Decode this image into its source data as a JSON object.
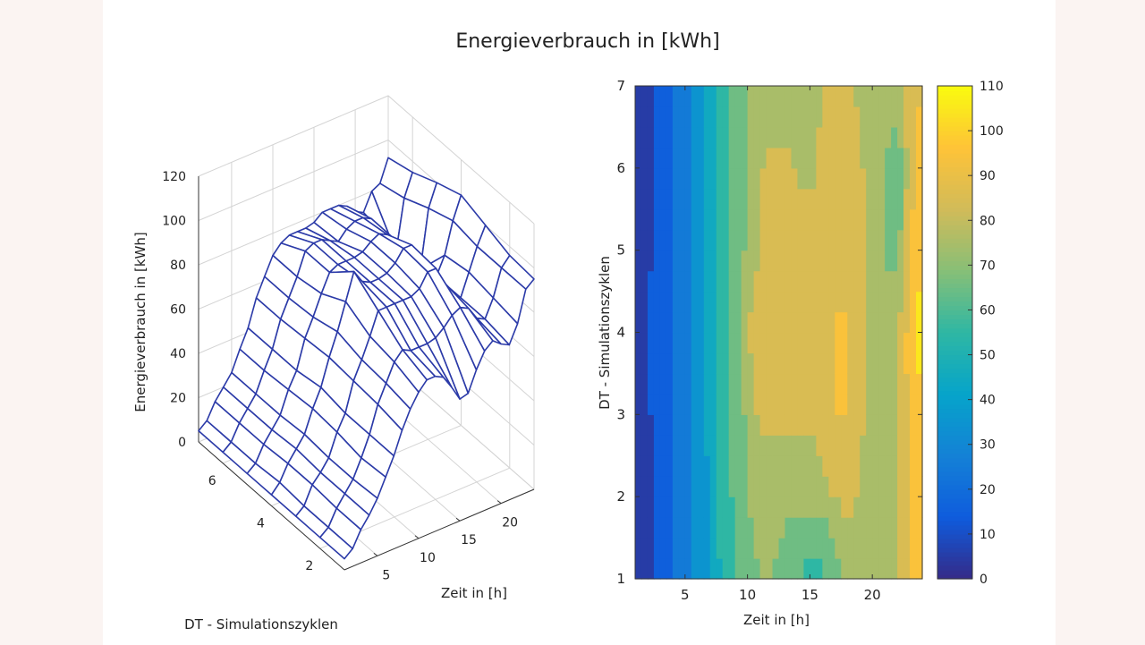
{
  "chart_data": [
    {
      "type": "surface-mesh",
      "title": "Energieverbrauch in [kWh]",
      "xlabel": "Zeit in [h]",
      "ylabel": "DT - Simulationszyklen",
      "zlabel": "Energieverbrauch in [kWh]",
      "xlim": [
        1,
        24
      ],
      "ylim": [
        1,
        7
      ],
      "zlim": [
        0,
        120
      ],
      "xticks": [
        5,
        10,
        15,
        20
      ],
      "yticks": [
        2,
        4,
        6
      ],
      "zticks": [
        0,
        20,
        40,
        60,
        80,
        100,
        120
      ],
      "grid": true,
      "mesh_color": "#2b3aa8"
    },
    {
      "type": "contourf",
      "xlabel": "Zeit in [h]",
      "ylabel": "DT - Simulationszyklen",
      "xlim": [
        1,
        24
      ],
      "ylim": [
        1,
        7
      ],
      "xticks": [
        5,
        10,
        15,
        20
      ],
      "yticks": [
        1,
        2,
        3,
        4,
        5,
        6,
        7
      ],
      "colorbar": {
        "range": [
          0,
          110
        ],
        "ticks": [
          0,
          10,
          20,
          30,
          40,
          50,
          60,
          70,
          80,
          90,
          100,
          110
        ],
        "placement": "right"
      },
      "levels_step": 10
    }
  ],
  "data": {
    "hours": [
      1,
      2,
      3,
      4,
      5,
      6,
      7,
      8,
      9,
      10,
      11,
      12,
      13,
      14,
      15,
      16,
      17,
      18,
      19,
      20,
      21,
      22,
      23,
      24
    ],
    "cycles": [
      1,
      2,
      3,
      4,
      5,
      6,
      7
    ],
    "z": [
      [
        5,
        8,
        15,
        20,
        26,
        34,
        42,
        52,
        60,
        66,
        70,
        70,
        68,
        62,
        55,
        56,
        65,
        72,
        75,
        72,
        70,
        78,
        92,
        95
      ],
      [
        5,
        8,
        15,
        20,
        25,
        33,
        42,
        54,
        62,
        70,
        74,
        72,
        72,
        72,
        73,
        76,
        80,
        82,
        80,
        74,
        72,
        80,
        92,
        96
      ],
      [
        5,
        8,
        16,
        20,
        25,
        35,
        42,
        55,
        63,
        72,
        82,
        82,
        82,
        82,
        82,
        84,
        90,
        90,
        82,
        76,
        72,
        82,
        92,
        100
      ],
      [
        5,
        9,
        16,
        21,
        26,
        36,
        44,
        56,
        66,
        78,
        90,
        84,
        82,
        82,
        83,
        86,
        91,
        91,
        83,
        76,
        72,
        80,
        94,
        104
      ],
      [
        5,
        8,
        15,
        20,
        25,
        35,
        42,
        55,
        63,
        72,
        80,
        82,
        82,
        82,
        83,
        86,
        88,
        86,
        82,
        75,
        70,
        64,
        90,
        100
      ],
      [
        5,
        8,
        15,
        20,
        25,
        34,
        42,
        54,
        62,
        70,
        80,
        82,
        82,
        80,
        78,
        82,
        84,
        84,
        82,
        74,
        70,
        62,
        85,
        95
      ],
      [
        5,
        8,
        15,
        20,
        25,
        34,
        42,
        54,
        62,
        70,
        74,
        76,
        76,
        76,
        77,
        80,
        80,
        80,
        78,
        74,
        72,
        80,
        82,
        92
      ]
    ]
  },
  "colors": {
    "colormap": [
      "#352A87",
      "#0F5CDD",
      "#1481D6",
      "#06A4CA",
      "#2EB7A4",
      "#87BF77",
      "#D1BB59",
      "#FEC338",
      "#F9FB0E"
    ],
    "contour_line": "#1a1a1a"
  }
}
